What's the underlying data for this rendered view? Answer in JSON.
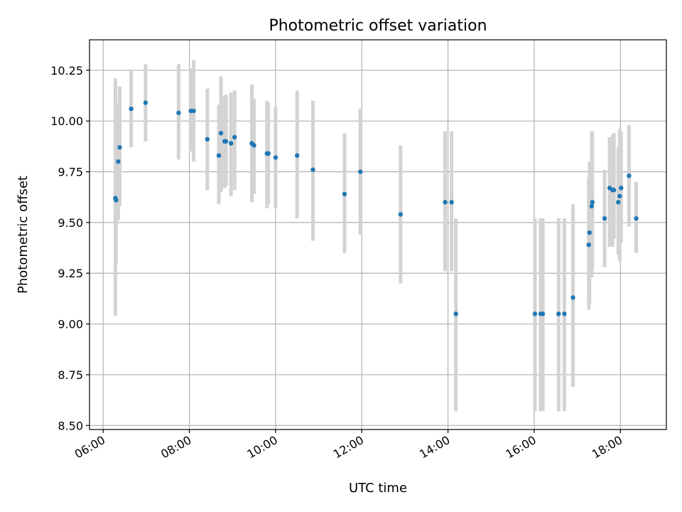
{
  "chart_data": {
    "type": "scatter",
    "title": "Photometric offset variation",
    "xlabel": "UTC time",
    "ylabel": "Photometric offset",
    "xlim": [
      "05:41",
      "19:04"
    ],
    "ylim": [
      8.48,
      10.4
    ],
    "x_ticks": [
      "06:00",
      "08:00",
      "10:00",
      "12:00",
      "14:00",
      "16:00",
      "18:00"
    ],
    "y_ticks": [
      "8.50",
      "8.75",
      "9.00",
      "9.25",
      "9.50",
      "9.75",
      "10.00",
      "10.25"
    ],
    "grid": true,
    "point_color": "#1f77b4",
    "errorbar_color": "#d3d3d3",
    "series": [
      {
        "x": [
          "06:17",
          "06:18",
          "06:21",
          "06:23",
          "06:39",
          "06:59",
          "07:45",
          "08:02",
          "08:06",
          "08:25",
          "08:41",
          "08:44",
          "08:49",
          "08:51",
          "08:58",
          "09:03",
          "09:27",
          "09:30",
          "09:48",
          "09:50",
          "10:00",
          "10:30",
          "10:52",
          "11:36",
          "11:58",
          "12:54",
          "13:56",
          "14:05",
          "14:11",
          "16:01",
          "16:09",
          "16:12",
          "16:34",
          "16:42",
          "16:54",
          "17:16",
          "17:17",
          "17:20",
          "17:21",
          "17:38",
          "17:45",
          "17:49",
          "17:51",
          "17:57",
          "17:59",
          "18:01",
          "18:12",
          "18:22"
        ],
        "y": [
          9.62,
          9.61,
          9.8,
          9.87,
          10.06,
          10.09,
          10.04,
          10.05,
          10.05,
          9.91,
          9.83,
          9.94,
          9.9,
          9.9,
          9.89,
          9.92,
          9.89,
          9.88,
          9.84,
          9.84,
          9.82,
          9.83,
          9.76,
          9.64,
          9.75,
          9.54,
          9.6,
          9.6,
          9.05,
          9.05,
          9.05,
          9.05,
          9.05,
          9.05,
          9.13,
          9.39,
          9.45,
          9.58,
          9.6,
          9.52,
          9.67,
          9.66,
          9.66,
          9.6,
          9.63,
          9.67,
          9.73,
          9.52
        ],
        "y_low": [
          9.04,
          9.3,
          9.51,
          9.58,
          9.87,
          9.9,
          9.81,
          9.85,
          9.8,
          9.66,
          9.59,
          9.65,
          9.67,
          9.68,
          9.63,
          9.66,
          9.6,
          9.64,
          9.57,
          9.59,
          9.57,
          9.52,
          9.41,
          9.35,
          9.44,
          9.2,
          9.26,
          9.26,
          8.57,
          8.57,
          8.57,
          8.57,
          8.57,
          8.57,
          8.69,
          9.07,
          9.1,
          9.23,
          9.27,
          9.28,
          9.38,
          9.38,
          9.42,
          9.34,
          9.31,
          9.4,
          9.48,
          9.35
        ],
        "y_high": [
          10.21,
          10.09,
          10.09,
          10.17,
          10.25,
          10.28,
          10.28,
          10.26,
          10.3,
          10.16,
          10.08,
          10.22,
          10.12,
          10.13,
          10.14,
          10.15,
          10.18,
          10.11,
          10.1,
          10.09,
          10.07,
          10.15,
          10.1,
          9.94,
          10.06,
          9.88,
          9.95,
          9.95,
          9.52,
          9.52,
          9.52,
          9.52,
          9.52,
          9.52,
          9.59,
          9.72,
          9.8,
          9.95,
          9.95,
          9.76,
          9.92,
          9.93,
          9.94,
          9.87,
          9.96,
          9.95,
          9.98,
          9.7
        ]
      }
    ]
  }
}
